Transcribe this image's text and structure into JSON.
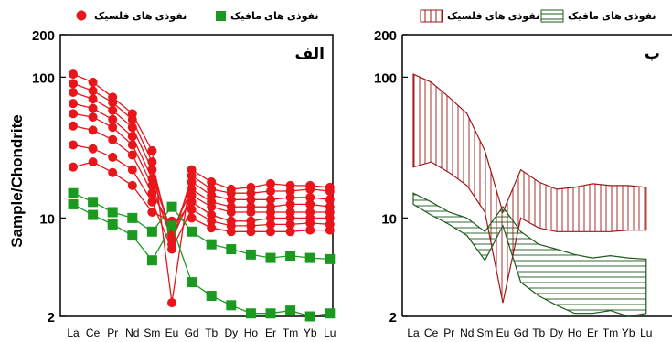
{
  "chart_data": [
    {
      "type": "line",
      "panel_label": "الف",
      "ylabel": "Sample/Chondrite",
      "xlabel": "",
      "yscale": "log",
      "ylim": [
        2,
        200
      ],
      "yticks": [
        2,
        10,
        100,
        200
      ],
      "categories": [
        "La",
        "Ce",
        "Pr",
        "Nd",
        "Sm",
        "Eu",
        "Gd",
        "Tb",
        "Dy",
        "Ho",
        "Er",
        "Tm",
        "Yb",
        "Lu"
      ],
      "legend": {
        "position": "top",
        "entries": [
          {
            "label": "نفوذی های فلسیک",
            "marker": "circle",
            "color": "#e8151b"
          },
          {
            "label": "نفوذی های مافیک",
            "marker": "square",
            "color": "#1a9a1f"
          }
        ]
      },
      "series": [
        {
          "group": "felsic",
          "color": "#e8151b",
          "marker": "circle",
          "values": [
            105,
            92,
            72,
            55,
            30,
            2.5,
            22,
            18,
            16,
            16.5,
            17.5,
            17,
            17,
            16.5
          ]
        },
        {
          "group": "felsic",
          "color": "#e8151b",
          "marker": "circle",
          "values": [
            90,
            80,
            66,
            50,
            25,
            6.5,
            20,
            16,
            15,
            15,
            15.5,
            15.5,
            16,
            15.5
          ]
        },
        {
          "group": "felsic",
          "color": "#e8151b",
          "marker": "circle",
          "values": [
            78,
            70,
            58,
            44,
            22,
            7.5,
            18,
            14.5,
            13.5,
            13.5,
            13.5,
            14,
            14,
            13.5
          ]
        },
        {
          "group": "felsic",
          "color": "#e8151b",
          "marker": "circle",
          "values": [
            65,
            60,
            50,
            38,
            19,
            8,
            16,
            13,
            12,
            12,
            12,
            12.5,
            12.5,
            12
          ]
        },
        {
          "group": "felsic",
          "color": "#e8151b",
          "marker": "circle",
          "values": [
            55,
            52,
            44,
            33,
            17,
            7,
            14.5,
            12,
            11,
            11,
            11,
            11,
            11,
            11
          ]
        },
        {
          "group": "felsic",
          "color": "#e8151b",
          "marker": "circle",
          "values": [
            45,
            42,
            36,
            28,
            15,
            8.5,
            13,
            10.5,
            9.5,
            9.5,
            10,
            10,
            10,
            10
          ]
        },
        {
          "group": "felsic",
          "color": "#e8151b",
          "marker": "circle",
          "values": [
            33,
            31,
            27,
            22,
            13,
            6,
            11.5,
            9.5,
            8.8,
            8.8,
            9,
            9,
            9.2,
            9
          ]
        },
        {
          "group": "felsic",
          "color": "#e8151b",
          "marker": "circle",
          "values": [
            23,
            25,
            21,
            17,
            11,
            9.5,
            10,
            8.5,
            8,
            8,
            8,
            8,
            8.2,
            8.2
          ]
        },
        {
          "group": "mafic",
          "color": "#1a9a1f",
          "marker": "square",
          "values": [
            15,
            13,
            11,
            10,
            8,
            12,
            8,
            6.5,
            6,
            5.5,
            5.2,
            5.4,
            5.2,
            5.1
          ]
        },
        {
          "group": "mafic",
          "color": "#1a9a1f",
          "marker": "square",
          "values": [
            12.5,
            10.5,
            9,
            7.5,
            5,
            8.8,
            3.5,
            2.8,
            2.4,
            2.1,
            2.1,
            2.2,
            2.0,
            2.1
          ]
        }
      ]
    },
    {
      "type": "area",
      "panel_label": "ب",
      "ylabel": "",
      "xlabel": "",
      "yscale": "log",
      "ylim": [
        2,
        200
      ],
      "yticks": [
        2,
        10,
        100,
        200
      ],
      "categories": [
        "La",
        "Ce",
        "Pr",
        "Nd",
        "Sm",
        "Eu",
        "Gd",
        "Tb",
        "Dy",
        "Ho",
        "Er",
        "Tm",
        "Yb",
        "Lu"
      ],
      "legend": {
        "position": "top",
        "entries": [
          {
            "label": "نفوذی های فلسیک",
            "pattern": "vertical-hatch",
            "color": "#a01818"
          },
          {
            "label": "نفوذی های مافیک",
            "pattern": "horizontal-hatch",
            "color": "#1f5a1f"
          }
        ]
      },
      "series": [
        {
          "group": "felsic",
          "color": "#a01818",
          "pattern": "vertical-hatch",
          "upper": [
            105,
            92,
            72,
            55,
            30,
            11,
            22,
            18,
            16,
            16.5,
            17.5,
            17,
            17,
            16.5
          ],
          "lower": [
            23,
            25,
            21,
            17,
            11,
            2.5,
            10,
            8.5,
            8,
            8,
            8,
            8,
            8.2,
            8.2
          ]
        },
        {
          "group": "mafic",
          "color": "#1f5a1f",
          "pattern": "horizontal-hatch",
          "upper": [
            15,
            13,
            11,
            10,
            8,
            12,
            8,
            6.5,
            6,
            5.5,
            5.2,
            5.4,
            5.2,
            5.1
          ],
          "lower": [
            12.5,
            10.5,
            9,
            7.5,
            5,
            8.8,
            3.5,
            2.8,
            2.4,
            2.1,
            2.1,
            2.2,
            2.0,
            2.1
          ]
        }
      ]
    }
  ]
}
